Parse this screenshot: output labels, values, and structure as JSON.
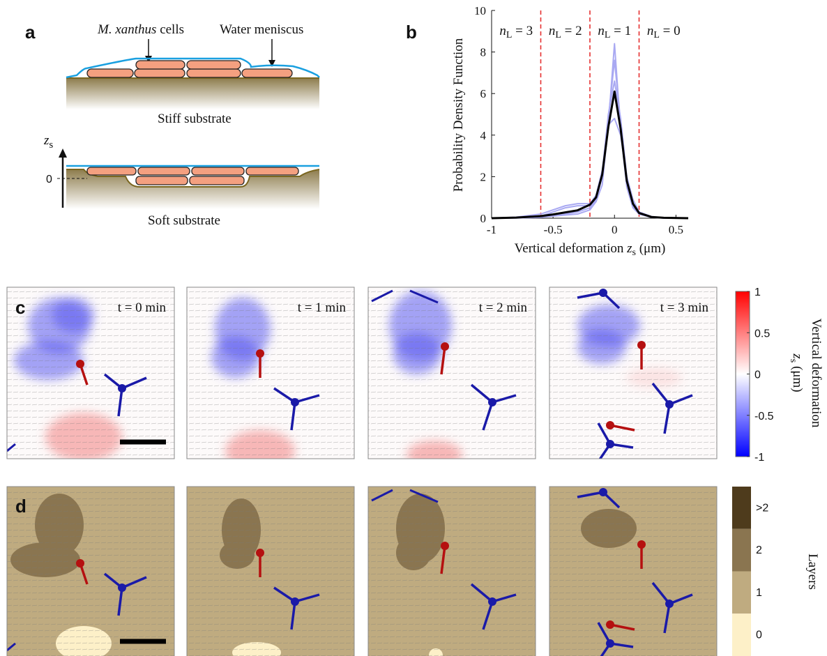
{
  "panel_a": {
    "label": "a",
    "cells_italic": "M. xanthus",
    "cells": " cells",
    "meniscus": "Water meniscus",
    "stiff": "Stiff substrate",
    "soft": "Soft substrate",
    "axis_var": "z",
    "axis_sub": "s",
    "zero": "0"
  },
  "chart_data": {
    "type": "line",
    "panel_label": "b",
    "ylabel": "Probability Density Function",
    "xlabel": {
      "text": "Vertical deformation ",
      "var": "z",
      "sub": "s",
      "unit": " (μm)"
    },
    "xlim": [
      -1,
      0.6
    ],
    "ylim": [
      0,
      10
    ],
    "xticks": [
      -1,
      -0.5,
      0,
      0.5
    ],
    "yticks": [
      0,
      2,
      4,
      6,
      8,
      10
    ],
    "x": [
      -1,
      -0.8,
      -0.6,
      -0.5,
      -0.4,
      -0.3,
      -0.2,
      -0.15,
      -0.1,
      -0.05,
      0,
      0.05,
      0.1,
      0.15,
      0.2,
      0.3,
      0.4,
      0.6
    ],
    "series": [
      {
        "color": "#a9a9f2",
        "values": [
          0,
          0.02,
          0.1,
          0.3,
          0.5,
          0.6,
          0.6,
          0.8,
          1.6,
          4.5,
          8.4,
          4.2,
          1.5,
          0.5,
          0.2,
          0.05,
          0.01,
          0
        ]
      },
      {
        "color": "#a9a9f2",
        "values": [
          0,
          0.05,
          0.2,
          0.4,
          0.6,
          0.7,
          0.7,
          1.1,
          2.3,
          4.5,
          4.8,
          4.0,
          2.0,
          0.9,
          0.3,
          0.08,
          0.02,
          0
        ]
      },
      {
        "color": "#a9a9f2",
        "values": [
          0,
          0.02,
          0.06,
          0.12,
          0.2,
          0.3,
          0.5,
          0.9,
          2.0,
          4.8,
          7.6,
          4.6,
          1.7,
          0.6,
          0.2,
          0.04,
          0.01,
          0
        ]
      },
      {
        "color": "#a9a9f2",
        "values": [
          0,
          0.01,
          0.04,
          0.1,
          0.15,
          0.2,
          0.4,
          0.8,
          2.2,
          5.0,
          6.6,
          4.8,
          2.0,
          0.7,
          0.25,
          0.05,
          0.01,
          0
        ]
      },
      {
        "color": "#000000",
        "values": [
          0,
          0.03,
          0.1,
          0.18,
          0.28,
          0.38,
          0.65,
          1.0,
          2.1,
          4.4,
          6.1,
          4.3,
          1.8,
          0.7,
          0.25,
          0.06,
          0.02,
          0
        ]
      }
    ],
    "thresholds": [
      -0.6,
      -0.2,
      0.2
    ],
    "threshold_color": "#e53030",
    "regions": [
      {
        "var": "n",
        "sub": "L",
        "text": " = 3"
      },
      {
        "var": "n",
        "sub": "L",
        "text": " = 2"
      },
      {
        "var": "n",
        "sub": "L",
        "text": " = 1"
      },
      {
        "var": "n",
        "sub": "L",
        "text": " = 0"
      }
    ]
  },
  "panel_c": {
    "label": "c",
    "times": [
      "t = 0 min",
      "t = 1 min",
      "t = 2 min",
      "t = 3 min"
    ],
    "colorbar_lim": [
      -1,
      1
    ],
    "colorbar_ticks": [
      1,
      0.5,
      0,
      -0.5,
      -1
    ],
    "colorbar_title": {
      "text": "Vertical deformation",
      "var": "z",
      "sub": "s",
      "unit": " (μm)"
    }
  },
  "panel_d": {
    "label": "d",
    "colorbar_labels": [
      ">2",
      "2",
      "1",
      "0"
    ],
    "colorbar_title": "Layers"
  }
}
